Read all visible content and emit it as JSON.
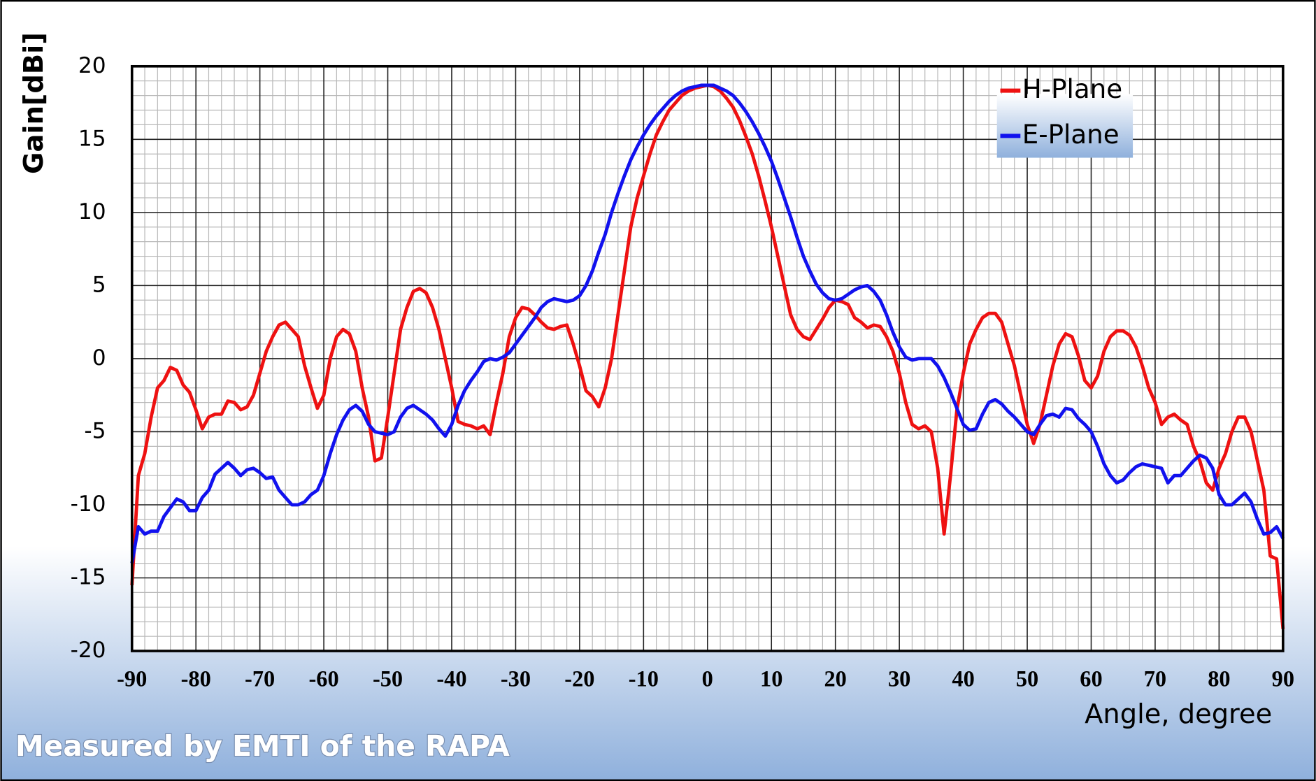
{
  "chart_data": {
    "type": "line",
    "y_label": "Gain[dBi]",
    "x_label": "Angle, degree",
    "annotation": "Measured by EMTI of the RAPA",
    "xlim": [
      -90,
      90
    ],
    "xticks": [
      -90,
      -80,
      -70,
      -60,
      -50,
      -40,
      -30,
      -20,
      -10,
      0,
      10,
      20,
      30,
      40,
      50,
      60,
      70,
      80,
      90
    ],
    "ylim": [
      -20,
      20
    ],
    "yticks": [
      -20,
      -15,
      -10,
      -5,
      0,
      5,
      10,
      15,
      20
    ],
    "grid": true,
    "minor_grid": {
      "x": 2,
      "y": 1
    },
    "legend": "upper-right",
    "x": [
      -90,
      -89,
      -88,
      -87,
      -86,
      -85,
      -84,
      -83,
      -82,
      -81,
      -80,
      -79,
      -78,
      -77,
      -76,
      -75,
      -74,
      -73,
      -72,
      -71,
      -70,
      -69,
      -68,
      -67,
      -66,
      -65,
      -64,
      -63,
      -62,
      -61,
      -60,
      -59,
      -58,
      -57,
      -56,
      -55,
      -54,
      -53,
      -52,
      -51,
      -50,
      -49,
      -48,
      -47,
      -46,
      -45,
      -44,
      -43,
      -42,
      -41,
      -40,
      -39,
      -38,
      -37,
      -36,
      -35,
      -34,
      -33,
      -32,
      -31,
      -30,
      -29,
      -28,
      -27,
      -26,
      -25,
      -24,
      -23,
      -22,
      -21,
      -20,
      -19,
      -18,
      -17,
      -16,
      -15,
      -14,
      -13,
      -12,
      -11,
      -10,
      -9,
      -8,
      -7,
      -6,
      -5,
      -4,
      -3,
      -2,
      -1,
      0,
      1,
      2,
      3,
      4,
      5,
      6,
      7,
      8,
      9,
      10,
      11,
      12,
      13,
      14,
      15,
      16,
      17,
      18,
      19,
      20,
      21,
      22,
      23,
      24,
      25,
      26,
      27,
      28,
      29,
      30,
      31,
      32,
      33,
      34,
      35,
      36,
      37,
      38,
      39,
      40,
      41,
      42,
      43,
      44,
      45,
      46,
      47,
      48,
      49,
      50,
      51,
      52,
      53,
      54,
      55,
      56,
      57,
      58,
      59,
      60,
      61,
      62,
      63,
      64,
      65,
      66,
      67,
      68,
      69,
      70,
      71,
      72,
      73,
      74,
      75,
      76,
      77,
      78,
      79,
      80,
      81,
      82,
      83,
      84,
      85,
      86,
      87,
      88,
      89,
      90
    ],
    "series": [
      {
        "name": "H-Plane",
        "color": "#ee1111",
        "values": [
          -15.5,
          -8,
          -6.5,
          -4,
          -2,
          -1.5,
          -0.6,
          -0.8,
          -1.8,
          -2.3,
          -3.5,
          -4.8,
          -4,
          -3.8,
          -3.8,
          -2.9,
          -3,
          -3.5,
          -3.3,
          -2.5,
          -1,
          0.5,
          1.5,
          2.3,
          2.5,
          2,
          1.5,
          -0.5,
          -2,
          -3.4,
          -2.5,
          0,
          1.5,
          2,
          1.7,
          0.5,
          -2,
          -4,
          -7,
          -6.8,
          -4,
          -1,
          2,
          3.5,
          4.6,
          4.8,
          4.5,
          3.5,
          2,
          0,
          -2,
          -4.3,
          -4.5,
          -4.6,
          -4.8,
          -4.6,
          -5.2,
          -3,
          -1,
          1.5,
          2.8,
          3.5,
          3.4,
          3,
          2.5,
          2.1,
          2,
          2.2,
          2.3,
          1,
          -0.5,
          -2.2,
          -2.6,
          -3.3,
          -2,
          0,
          3,
          6,
          9,
          11,
          12.5,
          14,
          15.3,
          16.2,
          17,
          17.5,
          18,
          18.3,
          18.5,
          18.6,
          18.7,
          18.6,
          18.3,
          17.8,
          17.2,
          16.3,
          15.2,
          14,
          12.5,
          10.8,
          9,
          7,
          5,
          3,
          2,
          1.5,
          1.3,
          2,
          2.7,
          3.5,
          4,
          3.9,
          3.7,
          2.8,
          2.5,
          2.1,
          2.3,
          2.2,
          1.5,
          0.5,
          -1,
          -3,
          -4.5,
          -4.8,
          -4.6,
          -5,
          -7.5,
          -12,
          -8,
          -3.5,
          -1,
          1,
          2,
          2.8,
          3.1,
          3.1,
          2.5,
          1,
          -0.5,
          -2.5,
          -4.5,
          -5.8,
          -4.5,
          -2.5,
          -0.5,
          1,
          1.7,
          1.5,
          0.2,
          -1.5,
          -2,
          -1.2,
          0.5,
          1.5,
          1.9,
          1.9,
          1.6,
          0.8,
          -0.5,
          -2,
          -3,
          -4.5,
          -4,
          -3.8,
          -4.2,
          -4.5,
          -6,
          -7,
          -8.5,
          -9,
          -7.5,
          -6.5,
          -5,
          -4,
          -4,
          -5,
          -7,
          -9,
          -13.5,
          -13.7,
          -18.5
        ]
      },
      {
        "name": "E-Plane",
        "color": "#1111ee",
        "values": [
          -14,
          -11.5,
          -12,
          -11.8,
          -11.8,
          -10.8,
          -10.2,
          -9.6,
          -9.8,
          -10.4,
          -10.4,
          -9.5,
          -9,
          -7.9,
          -7.5,
          -7.1,
          -7.5,
          -8,
          -7.6,
          -7.5,
          -7.8,
          -8.2,
          -8.1,
          -9,
          -9.5,
          -10,
          -10,
          -9.8,
          -9.3,
          -9,
          -8,
          -6.5,
          -5.2,
          -4.2,
          -3.5,
          -3.2,
          -3.6,
          -4.5,
          -5,
          -5.1,
          -5.2,
          -5,
          -4,
          -3.4,
          -3.2,
          -3.5,
          -3.8,
          -4.2,
          -4.8,
          -5.3,
          -4.5,
          -3.2,
          -2.2,
          -1.5,
          -0.9,
          -0.2,
          0,
          -0.1,
          0.1,
          0.4,
          1,
          1.6,
          2.2,
          2.8,
          3.5,
          3.9,
          4.1,
          4,
          3.9,
          4,
          4.3,
          5,
          6,
          7.3,
          8.5,
          10,
          11.3,
          12.5,
          13.6,
          14.5,
          15.3,
          16,
          16.6,
          17.1,
          17.6,
          18,
          18.3,
          18.5,
          18.6,
          18.7,
          18.7,
          18.7,
          18.5,
          18.3,
          18,
          17.5,
          16.9,
          16.2,
          15.4,
          14.5,
          13.5,
          12.3,
          11,
          9.7,
          8.3,
          7,
          6,
          5.1,
          4.5,
          4.1,
          4,
          4.1,
          4.4,
          4.7,
          4.9,
          5,
          4.6,
          4,
          3,
          1.8,
          0.8,
          0.1,
          -0.1,
          0,
          0,
          0,
          -0.5,
          -1.3,
          -2.3,
          -3.4,
          -4.5,
          -4.9,
          -4.8,
          -3.8,
          -3,
          -2.8,
          -3.1,
          -3.6,
          -4,
          -4.5,
          -5,
          -5.2,
          -4.5,
          -3.9,
          -3.8,
          -4,
          -3.4,
          -3.5,
          -4.1,
          -4.5,
          -5,
          -6,
          -7.2,
          -8,
          -8.5,
          -8.3,
          -7.8,
          -7.4,
          -7.2,
          -7.3,
          -7.4,
          -7.5,
          -8.5,
          -8,
          -8,
          -7.5,
          -7,
          -6.6,
          -6.8,
          -7.5,
          -9.3,
          -10,
          -10,
          -9.6,
          -9.2,
          -9.8,
          -11,
          -12,
          -11.9,
          -11.5,
          -12.3
        ]
      }
    ]
  }
}
